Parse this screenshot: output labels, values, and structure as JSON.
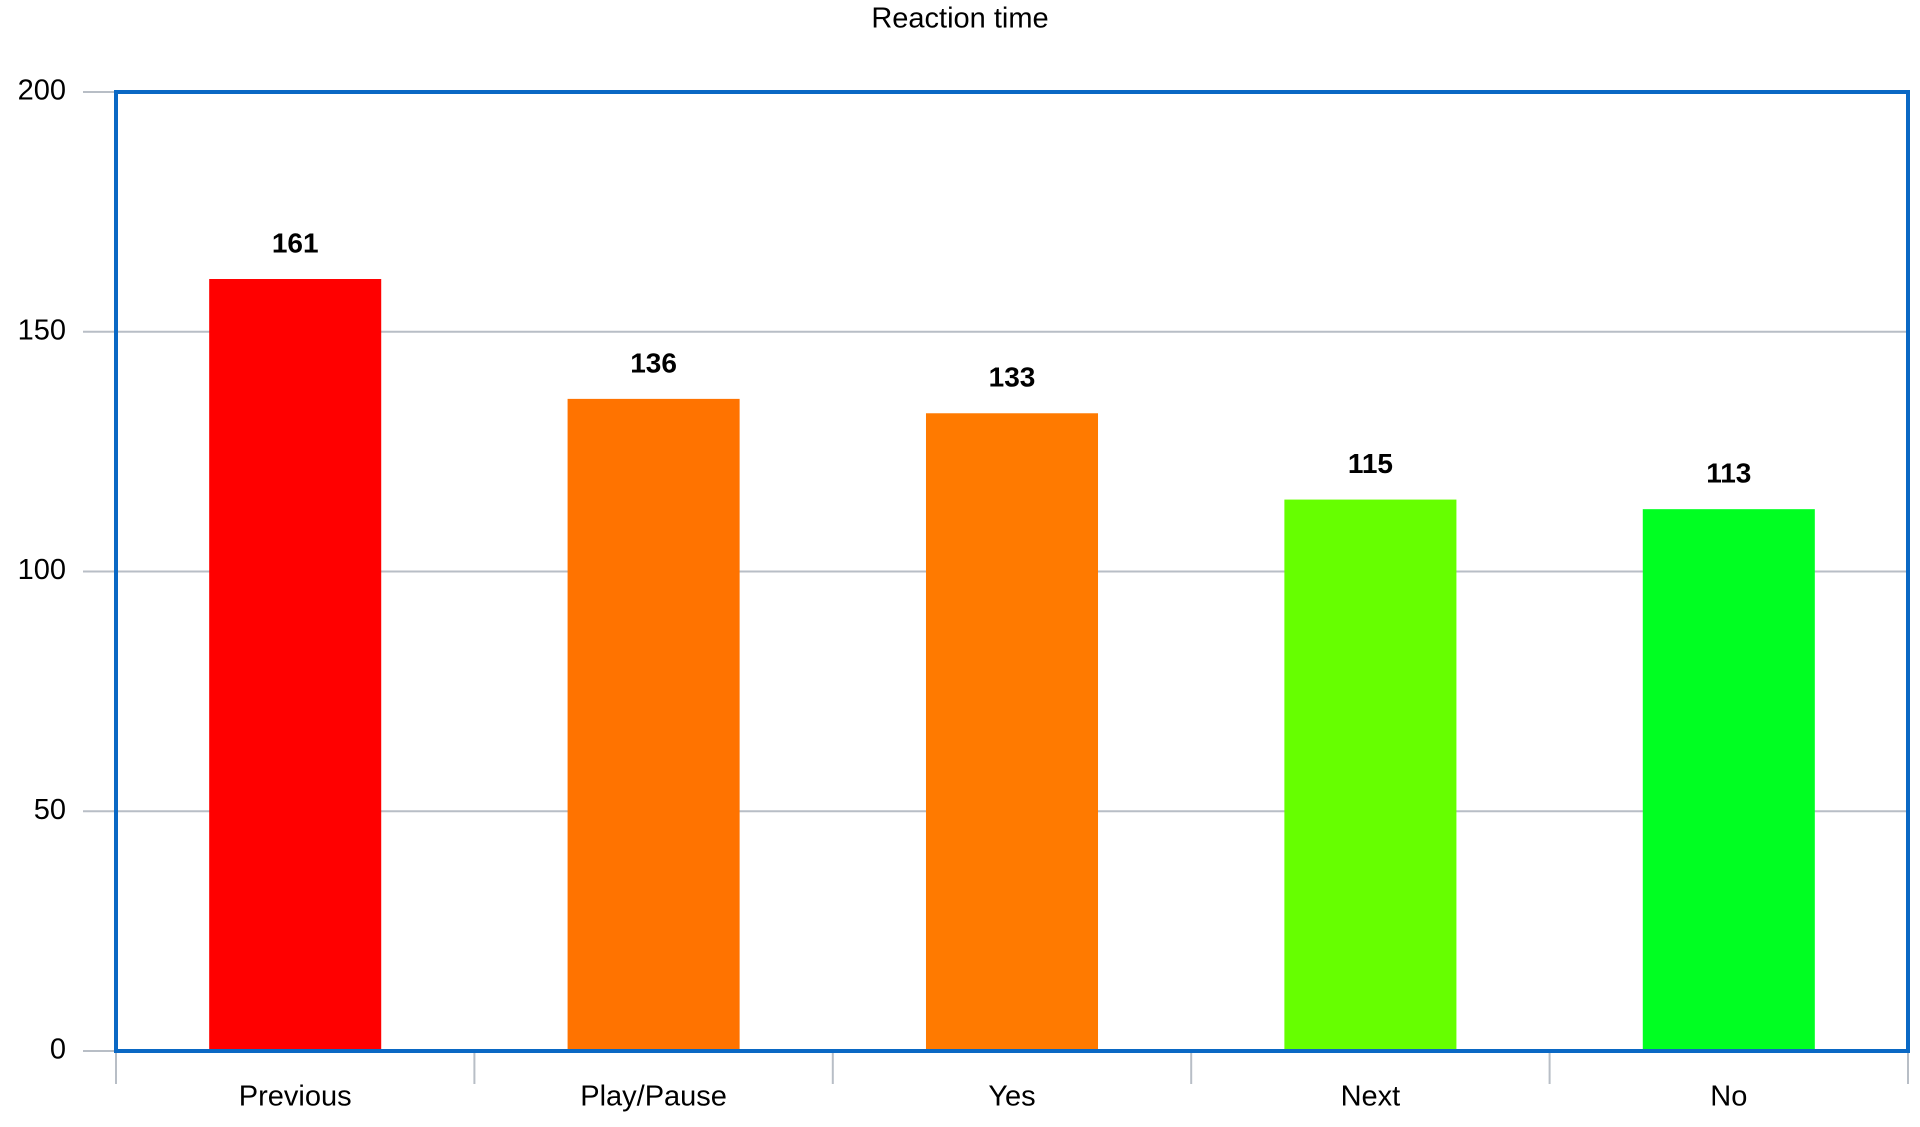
{
  "chart_data": {
    "type": "bar",
    "title": "Reaction time",
    "categories": [
      "Previous",
      "Play/Pause",
      "Yes",
      "Next",
      "No"
    ],
    "values": [
      161,
      136,
      133,
      115,
      113
    ],
    "colors": [
      "#ff0000",
      "#ff7300",
      "#ff7a00",
      "#66ff00",
      "#00ff22"
    ],
    "ylim": [
      0,
      200
    ],
    "yticks": [
      0,
      50,
      100,
      150,
      200
    ],
    "grid": true
  }
}
